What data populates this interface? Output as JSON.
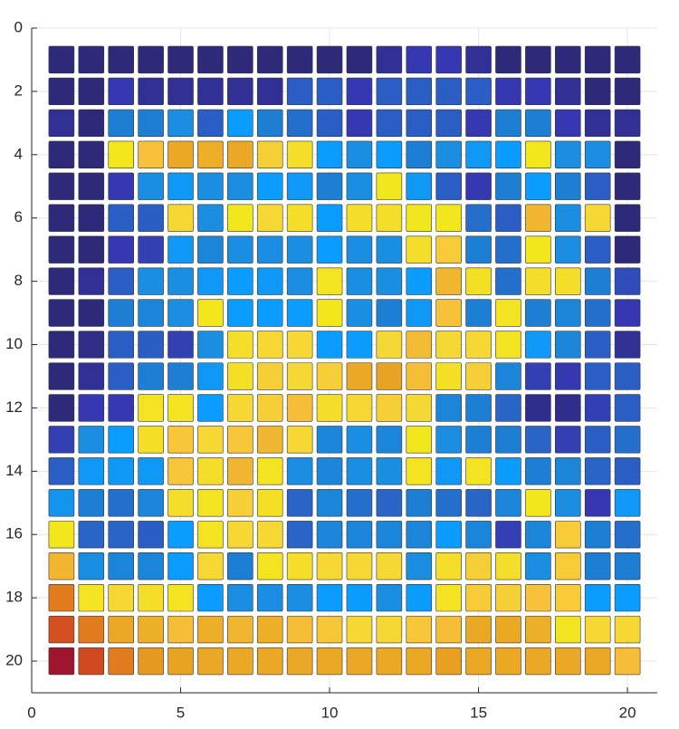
{
  "chart_data": {
    "type": "matrix",
    "x": [
      1,
      2,
      3,
      4,
      5,
      6,
      7,
      8,
      9,
      10,
      11,
      12,
      13,
      14,
      15,
      16,
      17,
      18,
      19,
      20
    ],
    "y": [
      1,
      2,
      3,
      4,
      5,
      6,
      7,
      8,
      9,
      10,
      11,
      12,
      13,
      14,
      15,
      16,
      17,
      18,
      19,
      20
    ],
    "clim": [
      0,
      1
    ],
    "values": [
      [
        0,
        0,
        0,
        0,
        0,
        0,
        0,
        0,
        0,
        0,
        0,
        0.05,
        0.1,
        0.1,
        0.05,
        0,
        0,
        0,
        0,
        0
      ],
      [
        0,
        0,
        0.1,
        0.05,
        0.05,
        0.05,
        0.05,
        0.05,
        0.2,
        0.2,
        0.1,
        0.2,
        0.2,
        0.2,
        0.2,
        0.1,
        0.1,
        0.05,
        0,
        0
      ],
      [
        0.05,
        0,
        0.3,
        0.3,
        0.35,
        0.2,
        0.42,
        0.3,
        0.25,
        0.2,
        0.1,
        0.2,
        0.2,
        0.2,
        0.1,
        0.3,
        0.3,
        0.1,
        0.05,
        0.05
      ],
      [
        0,
        0,
        0.55,
        0.65,
        0.72,
        0.7,
        0.72,
        0.62,
        0.58,
        0.42,
        0.35,
        0.42,
        0.3,
        0.35,
        0.4,
        0.42,
        0.55,
        0.35,
        0.35,
        0
      ],
      [
        0,
        0,
        0.1,
        0.35,
        0.4,
        0.35,
        0.35,
        0.42,
        0.4,
        0.3,
        0.35,
        0.55,
        0.4,
        0.2,
        0.1,
        0.3,
        0.42,
        0.3,
        0.2,
        0
      ],
      [
        0,
        0,
        0.2,
        0.2,
        0.6,
        0.35,
        0.55,
        0.6,
        0.58,
        0.42,
        0.58,
        0.58,
        0.55,
        0.55,
        0.25,
        0.2,
        0.68,
        0.35,
        0.6,
        0
      ],
      [
        0,
        0,
        0.1,
        0.12,
        0.4,
        0.32,
        0.35,
        0.35,
        0.35,
        0.42,
        0.35,
        0.35,
        0.58,
        0.63,
        0.3,
        0.25,
        0.55,
        0.35,
        0.2,
        0
      ],
      [
        0,
        0.05,
        0.2,
        0.35,
        0.35,
        0.4,
        0.42,
        0.4,
        0.35,
        0.56,
        0.35,
        0.35,
        0.42,
        0.68,
        0.57,
        0.25,
        0.58,
        0.58,
        0.3,
        0.15
      ],
      [
        0,
        0,
        0.3,
        0.32,
        0.35,
        0.55,
        0.42,
        0.42,
        0.42,
        0.55,
        0.35,
        0.3,
        0.4,
        0.65,
        0.3,
        0.56,
        0.3,
        0.32,
        0.25,
        0.1
      ],
      [
        0,
        0.02,
        0.2,
        0.2,
        0.12,
        0.35,
        0.58,
        0.6,
        0.6,
        0.42,
        0.42,
        0.6,
        0.67,
        0.6,
        0.6,
        0.56,
        0.4,
        0.32,
        0.2,
        0.05
      ],
      [
        0,
        0.05,
        0.2,
        0.3,
        0.3,
        0.4,
        0.57,
        0.62,
        0.6,
        0.62,
        0.72,
        0.74,
        0.66,
        0.57,
        0.62,
        0.32,
        0.12,
        0.1,
        0.2,
        0.2
      ],
      [
        0,
        0.1,
        0.1,
        0.56,
        0.56,
        0.42,
        0.6,
        0.62,
        0.66,
        0.58,
        0.6,
        0.62,
        0.6,
        0.32,
        0.3,
        0.22,
        0.03,
        0.03,
        0.12,
        0.2
      ],
      [
        0.12,
        0.35,
        0.42,
        0.57,
        0.64,
        0.6,
        0.64,
        0.68,
        0.6,
        0.32,
        0.35,
        0.32,
        0.55,
        0.35,
        0.3,
        0.3,
        0.22,
        0.12,
        0.2,
        0.25
      ],
      [
        0.2,
        0.4,
        0.4,
        0.4,
        0.64,
        0.58,
        0.68,
        0.56,
        0.35,
        0.32,
        0.35,
        0.35,
        0.56,
        0.4,
        0.56,
        0.42,
        0.3,
        0.32,
        0.22,
        0.2
      ],
      [
        0.38,
        0.3,
        0.25,
        0.32,
        0.58,
        0.56,
        0.62,
        0.57,
        0.22,
        0.32,
        0.25,
        0.22,
        0.3,
        0.25,
        0.22,
        0.32,
        0.55,
        0.35,
        0.1,
        0.4
      ],
      [
        0.55,
        0.22,
        0.22,
        0.2,
        0.42,
        0.56,
        0.6,
        0.6,
        0.22,
        0.32,
        0.32,
        0.32,
        0.32,
        0.42,
        0.32,
        0.12,
        0.32,
        0.63,
        0.3,
        0.25
      ],
      [
        0.68,
        0.35,
        0.32,
        0.32,
        0.42,
        0.6,
        0.3,
        0.56,
        0.58,
        0.6,
        0.6,
        0.6,
        0.35,
        0.58,
        0.62,
        0.58,
        0.35,
        0.63,
        0.3,
        0.3
      ],
      [
        0.8,
        0.56,
        0.6,
        0.58,
        0.56,
        0.42,
        0.35,
        0.35,
        0.35,
        0.42,
        0.42,
        0.35,
        0.42,
        0.56,
        0.63,
        0.62,
        0.65,
        0.63,
        0.42,
        0.42
      ],
      [
        0.88,
        0.8,
        0.72,
        0.7,
        0.66,
        0.7,
        0.68,
        0.7,
        0.66,
        0.64,
        0.6,
        0.6,
        0.64,
        0.66,
        0.72,
        0.72,
        0.7,
        0.56,
        0.6,
        0.6
      ],
      [
        1.0,
        0.9,
        0.8,
        0.76,
        0.74,
        0.72,
        0.72,
        0.72,
        0.72,
        0.72,
        0.72,
        0.72,
        0.72,
        0.75,
        0.72,
        0.72,
        0.72,
        0.72,
        0.72,
        0.66
      ]
    ],
    "xlim": [
      0,
      21
    ],
    "ylim": [
      0,
      21
    ],
    "y_reversed": true,
    "xticks": [
      0,
      5,
      10,
      15,
      20
    ],
    "yticks": [
      0,
      2,
      4,
      6,
      8,
      10,
      12,
      14,
      16,
      18,
      20
    ],
    "grid": true
  }
}
